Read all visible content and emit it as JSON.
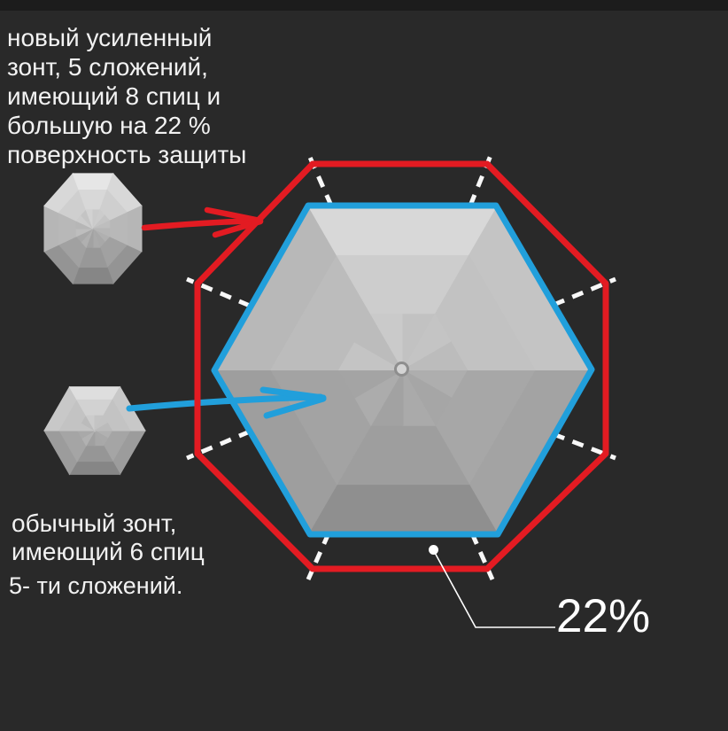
{
  "notes": {
    "new_umbrella": {
      "lines": [
        "новый усиленный",
        "зонт, 5 сложений,",
        "имеющий 8 спиц и",
        "большую на 22 %",
        "поверхность защиты"
      ]
    },
    "old_umbrella": {
      "lines": [
        "обычный зонт,",
        "имеющий 6 спиц"
      ],
      "folds": "5- ти сложений."
    }
  },
  "labels": {
    "gain_percent": "22%"
  },
  "icons": {
    "new_umbrella_icon": "octagon-umbrella-top-view",
    "old_umbrella_icon": "hexagon-umbrella-top-view"
  },
  "colors": {
    "background": "#292929",
    "top_strip": "#1c1c1c",
    "text": "#f2f2f2",
    "label": "#ffffff",
    "new_outline_red": "#e31b22",
    "old_outline_blue": "#219fdb",
    "spoke_dash_white": "#f8f8f8",
    "leader_white": "#ffffff",
    "canopy_light": "#d8d8d8",
    "canopy_dark": "#8f8f8f",
    "tip_ring_fill": "#d4d4d4",
    "tip_ring_stroke": "#8e8e8e"
  }
}
